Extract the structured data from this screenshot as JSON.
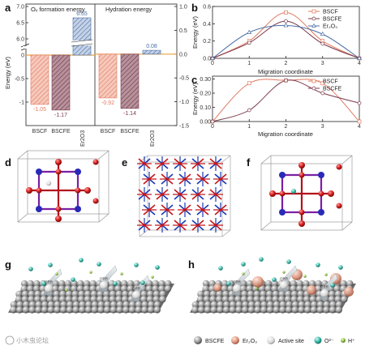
{
  "panels": {
    "a": {
      "label": "a",
      "sections": [
        {
          "title": "O<sub>v</sub> formation energy"
        },
        {
          "title": "Hydration energy"
        }
      ],
      "title_text": [
        "Oᵥ formation energy",
        "Hydration energy"
      ],
      "ylabel": "Energy (eV)",
      "left_ticks_low": [
        "0",
        "-0.5",
        "-1"
      ],
      "left_ticks_high": [
        "6.0",
        "6.5",
        "7.0"
      ],
      "right_ticks": [
        "1.0",
        "0.5",
        "0.0",
        "-0.5",
        "-1.0",
        "-1.5"
      ],
      "categories": [
        "BSCF",
        "BSCFE",
        "Er2O3",
        "BSCF",
        "BSCFE",
        "Er2O3"
      ]
    },
    "b": {
      "label": "b",
      "ylabel": "Energy (eV)",
      "xlabel": "Migration coordinate",
      "yticks": [
        "0.0",
        "0.2",
        "0.4",
        "0.6"
      ],
      "xticks": [
        "0",
        "1",
        "2",
        "3",
        "4"
      ],
      "legend": [
        "BSCF",
        "BSCFE",
        "Er₂O₃"
      ]
    },
    "c": {
      "label": "c",
      "ylabel": "Energy (eV)",
      "xlabel": "Migration coordinate",
      "yticks": [
        "0.00",
        "0.10",
        "0.20",
        "0.30"
      ],
      "xticks": [
        "0",
        "1",
        "2",
        "3",
        "4"
      ],
      "legend": [
        "BSCF",
        "BSCFE"
      ]
    },
    "d": {
      "label": "d"
    },
    "e": {
      "label": "e"
    },
    "f": {
      "label": "f"
    },
    "g": {
      "label": "g",
      "orr": "ORR"
    },
    "h": {
      "label": "h",
      "orr": "ORR"
    }
  },
  "legend_bottom": {
    "items": [
      "BSCFE",
      "Er₂O₃",
      "Active site",
      "O²⁻",
      "H⁺"
    ]
  },
  "watermark": "小木虫论坛",
  "colors": {
    "bscf": "#e07a5f",
    "bscfe": "#7a3a4a",
    "er2o3": "#4a6fa5",
    "bscf_fill": "#f2b6a6",
    "bscfe_fill": "#9b6b78",
    "er_fill": "#a9bcd8",
    "orange_line": "#e8a33d"
  },
  "chart_data": [
    {
      "type": "bar",
      "title": "Oᵥ formation energy",
      "categories": [
        "BSCF",
        "BSCFE",
        "Er2O3"
      ],
      "values": [
        -1.05,
        -1.17,
        6.65
      ],
      "ylabel": "Energy (eV)"
    },
    {
      "type": "bar",
      "title": "Hydration energy",
      "categories": [
        "BSCF",
        "BSCFE",
        "Er2O3"
      ],
      "values": [
        -0.92,
        -1.14,
        0.08
      ],
      "ylim": [
        -1.5,
        1.0
      ]
    },
    {
      "type": "line",
      "xlabel": "Migration coordinate",
      "ylabel": "Energy (eV)",
      "x": [
        0,
        1,
        2,
        3,
        4
      ],
      "ylim": [
        0.0,
        0.6
      ],
      "series": [
        {
          "name": "BSCF",
          "values": [
            0.0,
            0.2,
            0.53,
            0.2,
            0.0
          ]
        },
        {
          "name": "BSCFE",
          "values": [
            0.0,
            0.18,
            0.43,
            0.17,
            0.0
          ]
        },
        {
          "name": "Er₂O₃",
          "values": [
            0.0,
            0.3,
            0.38,
            0.28,
            0.0
          ]
        }
      ]
    },
    {
      "type": "line",
      "xlabel": "Migration coordinate",
      "ylabel": "Energy (eV)",
      "x": [
        0,
        1,
        2,
        3,
        4
      ],
      "ylim": [
        0.0,
        0.32
      ],
      "series": [
        {
          "name": "BSCF",
          "values": [
            0.0,
            0.27,
            0.29,
            0.27,
            0.0
          ]
        },
        {
          "name": "BSCFE",
          "values": [
            0.0,
            0.08,
            0.29,
            0.2,
            0.13
          ]
        }
      ]
    }
  ],
  "value_labels": {
    "ov": [
      "-1.05",
      "-1.17",
      "6.65"
    ],
    "hyd": [
      "-0.92",
      "-1.14",
      "0.08"
    ]
  }
}
